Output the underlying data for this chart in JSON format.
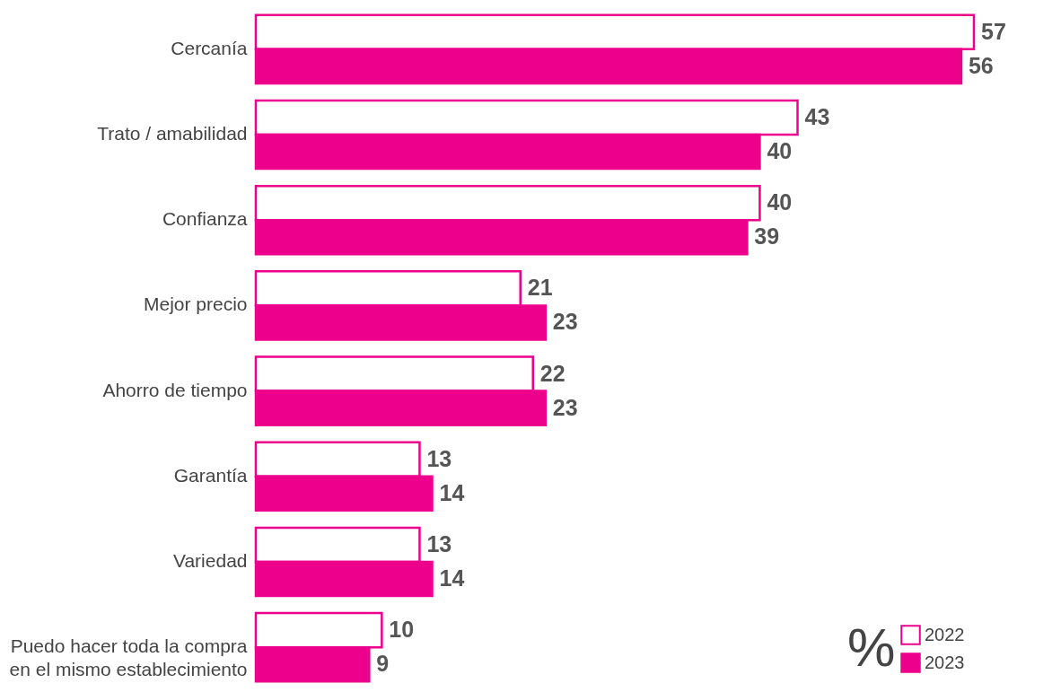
{
  "chart_data": {
    "type": "bar",
    "orientation": "horizontal",
    "legend_title": "%",
    "legend": "bottom right",
    "data_labels": true,
    "categories": [
      "Cercanía",
      "Trato / amabilidad",
      "Confianza",
      "Mejor precio",
      "Ahorro de tiempo",
      "Garantía",
      "Variedad",
      "Puedo hacer toda la compra en el mismo establecimiento"
    ],
    "series": [
      {
        "name": "2022",
        "color": "#ffffff",
        "values": [
          57,
          43,
          40,
          21,
          22,
          13,
          13,
          10
        ]
      },
      {
        "name": "2023",
        "color": "#ec008c",
        "values": [
          56,
          40,
          39,
          23,
          23,
          14,
          14,
          9
        ]
      }
    ]
  }
}
